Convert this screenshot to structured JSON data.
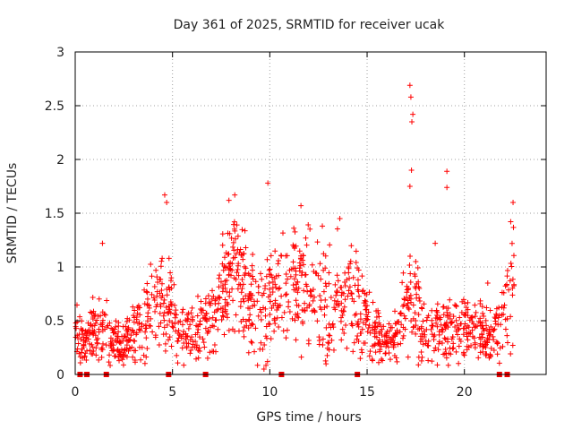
{
  "chart_data": {
    "type": "scatter",
    "title": "Day 361 of 2025, SRMTID for receiver ucak",
    "xlabel": "GPS time / hours",
    "ylabel": "SRMTID / TECUs",
    "xlim": [
      0,
      24.2
    ],
    "ylim": [
      0,
      3
    ],
    "x_ticks": [
      "0",
      "5",
      "10",
      "15",
      "20"
    ],
    "x_tick_values": [
      0,
      5,
      10,
      15,
      20
    ],
    "y_ticks": [
      "0",
      "0.5",
      "1",
      "1.5",
      "2",
      "2.5",
      "3"
    ],
    "y_tick_values": [
      0,
      0.5,
      1,
      1.5,
      2,
      2.5,
      3
    ],
    "grid": true,
    "marker": "plus",
    "color": "#ff0000",
    "envelope": {
      "x": [
        0,
        0.5,
        1,
        1.5,
        2,
        2.5,
        3,
        3.5,
        4,
        4.5,
        5,
        5.5,
        6,
        6.5,
        7,
        7.5,
        8,
        8.5,
        9,
        9.5,
        10,
        10.5,
        11,
        11.5,
        12,
        12.5,
        13,
        13.5,
        14,
        14.5,
        15,
        15.5,
        16,
        16.5,
        17,
        17.5,
        18,
        18.5,
        19,
        19.5,
        20,
        20.5,
        21,
        21.5,
        22,
        22.5
      ],
      "center": [
        0.4,
        0.3,
        0.4,
        0.45,
        0.3,
        0.3,
        0.35,
        0.45,
        0.6,
        0.75,
        0.6,
        0.35,
        0.35,
        0.4,
        0.5,
        0.7,
        0.9,
        0.85,
        0.7,
        0.6,
        0.75,
        0.7,
        0.75,
        0.8,
        0.85,
        0.7,
        0.6,
        0.7,
        0.8,
        0.7,
        0.5,
        0.35,
        0.3,
        0.35,
        0.6,
        0.7,
        0.35,
        0.4,
        0.45,
        0.35,
        0.5,
        0.45,
        0.35,
        0.35,
        0.5,
        0.9
      ],
      "spread": [
        0.15,
        0.12,
        0.18,
        0.25,
        0.12,
        0.12,
        0.15,
        0.2,
        0.25,
        0.3,
        0.25,
        0.15,
        0.15,
        0.2,
        0.2,
        0.3,
        0.35,
        0.35,
        0.3,
        0.3,
        0.35,
        0.3,
        0.3,
        0.35,
        0.35,
        0.3,
        0.3,
        0.3,
        0.35,
        0.3,
        0.2,
        0.15,
        0.15,
        0.15,
        0.3,
        0.35,
        0.15,
        0.2,
        0.2,
        0.15,
        0.2,
        0.2,
        0.15,
        0.15,
        0.25,
        0.4
      ]
    },
    "outliers": [
      {
        "x": 17.2,
        "y": 2.69
      },
      {
        "x": 17.25,
        "y": 2.58
      },
      {
        "x": 17.35,
        "y": 2.42
      },
      {
        "x": 17.3,
        "y": 2.35
      },
      {
        "x": 17.28,
        "y": 1.9
      },
      {
        "x": 17.2,
        "y": 1.75
      },
      {
        "x": 19.1,
        "y": 1.89
      },
      {
        "x": 19.1,
        "y": 1.74
      },
      {
        "x": 9.9,
        "y": 1.78
      },
      {
        "x": 4.6,
        "y": 1.67
      },
      {
        "x": 8.2,
        "y": 1.67
      },
      {
        "x": 4.7,
        "y": 1.6
      },
      {
        "x": 22.5,
        "y": 1.6
      },
      {
        "x": 1.4,
        "y": 1.22
      },
      {
        "x": 11.6,
        "y": 1.57
      },
      {
        "x": 9.7,
        "y": 0.05
      },
      {
        "x": 21.2,
        "y": 0.85
      },
      {
        "x": 18.5,
        "y": 1.22
      },
      {
        "x": 7.9,
        "y": 1.62
      },
      {
        "x": 12.7,
        "y": 1.38
      },
      {
        "x": 13.6,
        "y": 1.45
      }
    ],
    "gap_flags": [
      0.25,
      0.6,
      1.6,
      4.8,
      6.7,
      10.6,
      14.5,
      21.8,
      22.2
    ]
  }
}
